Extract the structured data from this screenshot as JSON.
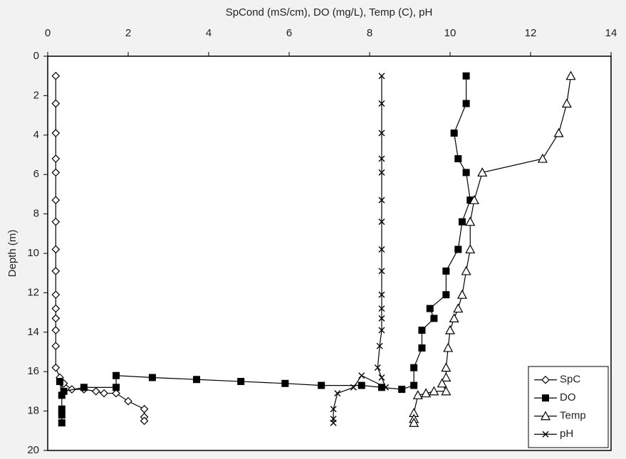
{
  "chart_data": {
    "type": "line",
    "title": "SpCond (mS/cm), DO (mg/L), Temp (C), pH",
    "y_label": "Depth (m)",
    "xlim": [
      0,
      14
    ],
    "xticks": [
      0,
      2,
      4,
      6,
      8,
      10,
      12,
      14
    ],
    "ylim": [
      0,
      20
    ],
    "yticks": [
      0,
      2,
      4,
      6,
      8,
      10,
      12,
      14,
      16,
      18,
      20
    ],
    "y_inverted": true,
    "x_axis_position": "top",
    "grid": false,
    "legend": "lower right",
    "series": [
      {
        "name": "SpC",
        "color": "#000000",
        "marker": "diamond",
        "x": [
          0.2,
          0.2,
          0.2,
          0.2,
          0.2,
          0.2,
          0.2,
          0.2,
          0.2,
          0.2,
          0.2,
          0.2,
          0.2,
          0.2,
          0.2,
          0.3,
          0.4,
          0.6,
          0.9,
          1.2,
          1.4,
          1.7,
          2.0,
          2.4,
          2.4,
          2.4
        ],
        "y": [
          1,
          2.4,
          3.9,
          5.2,
          5.9,
          7.3,
          8.4,
          9.8,
          10.9,
          12.1,
          12.8,
          13.3,
          13.9,
          14.7,
          15.8,
          16.3,
          16.6,
          16.9,
          16.9,
          17.0,
          17.1,
          17.1,
          17.5,
          17.9,
          18.3,
          18.5
        ]
      },
      {
        "name": "DO",
        "color": "#000000",
        "marker": "square",
        "x": [
          10.4,
          10.4,
          10.1,
          10.2,
          10.4,
          10.5,
          10.3,
          10.2,
          9.9,
          9.9,
          9.5,
          9.6,
          9.3,
          9.3,
          9.1,
          9.1,
          8.8,
          8.3,
          7.8,
          6.8,
          5.9,
          4.8,
          3.7,
          2.6,
          1.7,
          1.7,
          0.9,
          0.4,
          0.3,
          0.35,
          0.35,
          0.35,
          0.35
        ],
        "y": [
          1,
          2.4,
          3.9,
          5.2,
          5.9,
          7.3,
          8.4,
          9.8,
          10.9,
          12.1,
          12.8,
          13.3,
          13.9,
          14.8,
          15.8,
          16.7,
          16.9,
          16.8,
          16.7,
          16.7,
          16.6,
          16.5,
          16.4,
          16.3,
          16.2,
          16.8,
          16.8,
          17.0,
          16.5,
          17.2,
          17.9,
          18.2,
          18.6
        ]
      },
      {
        "name": "Temp",
        "color": "#000000",
        "marker": "triangle",
        "x": [
          13.0,
          12.9,
          12.7,
          12.3,
          10.8,
          10.6,
          10.5,
          10.5,
          10.4,
          10.3,
          10.2,
          10.1,
          10.0,
          9.95,
          9.9,
          9.9,
          9.8,
          9.9,
          9.6,
          9.4,
          9.2,
          9.1,
          9.1,
          9.1
        ],
        "y": [
          1,
          2.4,
          3.9,
          5.2,
          5.9,
          7.3,
          8.4,
          9.8,
          10.9,
          12.1,
          12.8,
          13.3,
          13.9,
          14.8,
          15.8,
          16.3,
          16.6,
          17.0,
          17.0,
          17.1,
          17.2,
          18.1,
          18.4,
          18.6
        ]
      },
      {
        "name": "pH",
        "color": "#000000",
        "marker": "cross",
        "x": [
          8.3,
          8.3,
          8.3,
          8.3,
          8.3,
          8.3,
          8.3,
          8.3,
          8.3,
          8.3,
          8.3,
          8.3,
          8.3,
          8.25,
          8.2,
          8.3,
          8.4,
          7.8,
          7.6,
          7.2,
          7.1,
          7.1,
          7.1
        ],
        "y": [
          1,
          2.4,
          3.9,
          5.2,
          5.9,
          7.3,
          8.4,
          9.8,
          10.9,
          12.1,
          12.8,
          13.3,
          13.9,
          14.7,
          15.8,
          16.3,
          16.8,
          16.2,
          16.8,
          17.1,
          17.9,
          18.4,
          18.6
        ]
      }
    ]
  }
}
